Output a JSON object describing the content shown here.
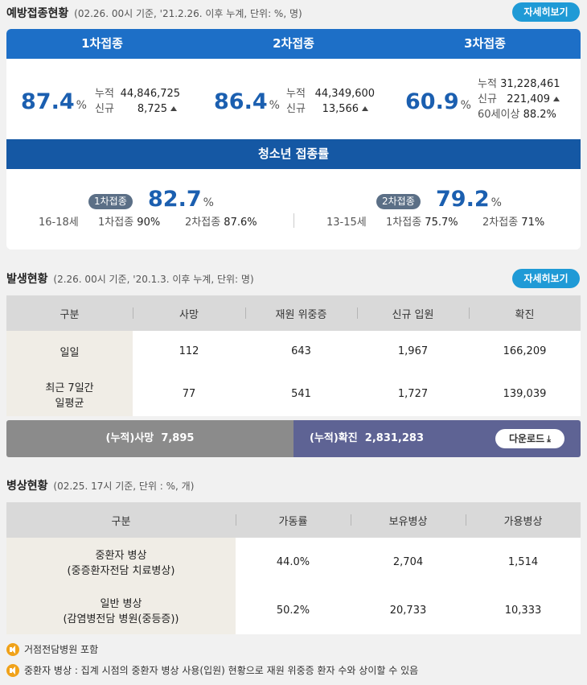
{
  "vaccination": {
    "title": "예방접종현황",
    "subtitle": "(02.26. 00시 기준, '21.2.26. 이후 누계, 단위: %, 명)",
    "more_label": "자세히보기",
    "doses": [
      {
        "header": "1차접종",
        "rate": "87.4",
        "unit": "%",
        "cum_label": "누적",
        "cum": "44,846,725",
        "new_label": "신규",
        "new": "8,725"
      },
      {
        "header": "2차접종",
        "rate": "86.4",
        "unit": "%",
        "cum_label": "누적",
        "cum": "44,349,600",
        "new_label": "신규",
        "new": "13,566"
      },
      {
        "header": "3차접종",
        "rate": "60.9",
        "unit": "%",
        "cum_label": "누적",
        "cum": "31,228,461",
        "new_label": "신규",
        "new": "221,409",
        "elder_label": "60세이상",
        "elder": "88.2%"
      }
    ],
    "youth": {
      "header": "청소년 접종률",
      "groups": [
        {
          "age": "16-18세",
          "badge": "1차접종",
          "rate": "82.7",
          "unit": "%",
          "d1_label": "1차접종",
          "d1": "90%",
          "d2_label": "2차접종",
          "d2": "87.6%"
        },
        {
          "age": "13-15세",
          "badge": "2차접종",
          "rate": "79.2",
          "unit": "%",
          "d1_label": "1차접종",
          "d1": "75.7%",
          "d2_label": "2차접종",
          "d2": "71%"
        }
      ]
    }
  },
  "occurrence": {
    "title": "발생현황",
    "subtitle": "(2.26. 00시 기준, '20.1.3. 이후 누계, 단위: 명)",
    "more_label": "자세히보기",
    "columns": [
      "구분",
      "사망",
      "재원 위중증",
      "신규 입원",
      "확진"
    ],
    "rows": [
      {
        "label": "일일",
        "cells": [
          "112",
          "643",
          "1,967",
          "166,209"
        ]
      },
      {
        "label_line1": "최근 7일간",
        "label_line2": "일평균",
        "cells": [
          "77",
          "541",
          "1,727",
          "139,039"
        ]
      }
    ],
    "summary": {
      "death_label": "(누적)사망",
      "death": "7,895",
      "confirmed_label": "(누적)확진",
      "confirmed": "2,831,283",
      "download_label": "다운로드"
    }
  },
  "beds": {
    "title": "병상현황",
    "subtitle": "(02.25. 17시 기준, 단위 : %, 개)",
    "columns": [
      "구분",
      "가동률",
      "보유병상",
      "가용병상"
    ],
    "rows": [
      {
        "line1": "중환자 병상",
        "line2": "(중증환자전담 치료병상)",
        "cells": [
          "44.0%",
          "2,704",
          "1,514"
        ]
      },
      {
        "line1": "일반 병상",
        "line2": "(감염병전담 병원(중등증))",
        "cells": [
          "50.2%",
          "20,733",
          "10,333"
        ]
      }
    ],
    "notes": [
      "거점전담병원 포함",
      "중환자 병상 : 집계 시점의 중환자 병상 사용(입원) 현황으로 재원 위중증 환자 수와 상이할 수 있음"
    ]
  },
  "colors": {
    "blue_header": "#1d6fc7",
    "youth_header": "#1558a4",
    "accent_btn": "#1f9ad6",
    "number_blue": "#1b5fb0"
  }
}
